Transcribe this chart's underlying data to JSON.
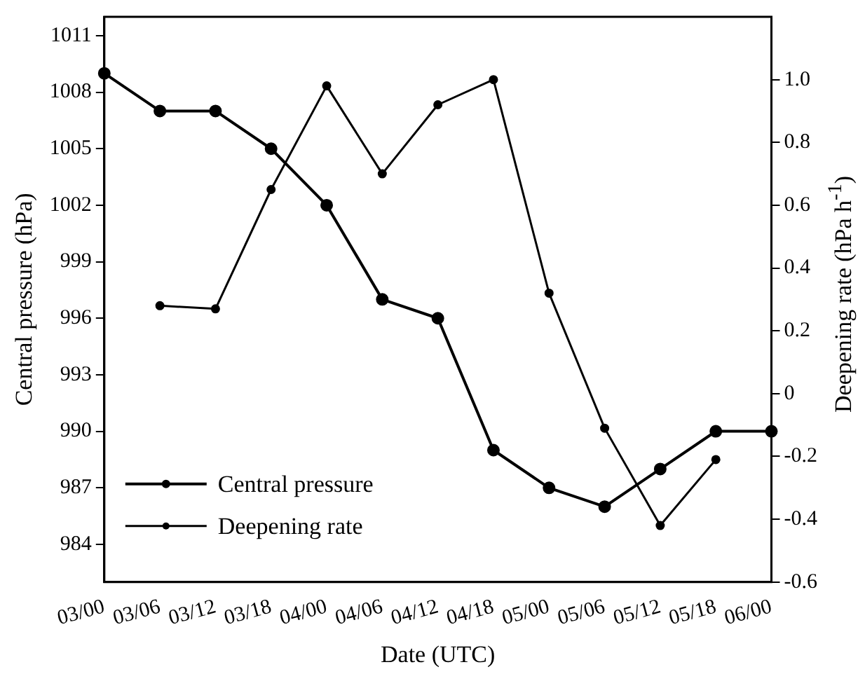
{
  "chart_data": {
    "type": "line",
    "xlabel": "Date (UTC)",
    "ylabel": "Central pressure (hPa)",
    "y2label": "Deepening rate (hPa h$^{-1}$)",
    "categories": [
      "03/00",
      "03/06",
      "03/12",
      "03/18",
      "04/00",
      "04/06",
      "04/12",
      "04/18",
      "05/00",
      "05/06",
      "05/12",
      "05/18",
      "06/00"
    ],
    "series": [
      {
        "name": "Central pressure",
        "color": "#000000",
        "values": [
          1009,
          1007,
          1007,
          1005,
          1002,
          997,
          996,
          989,
          987,
          986,
          988,
          990,
          990
        ]
      },
      {
        "name": "Deepening rate",
        "color": "#000000",
        "axis": "y2",
        "values": [
          null,
          0.28,
          0.27,
          0.65,
          0.98,
          0.7,
          0.92,
          1.0,
          0.32,
          -0.11,
          -0.42,
          -0.21,
          null
        ]
      }
    ],
    "ylim": [
      982,
      1012
    ],
    "yticks": [
      984,
      987,
      990,
      993,
      996,
      999,
      1002,
      1005,
      1008,
      1011
    ],
    "y2lim": [
      -0.6,
      1.2
    ],
    "y2ticks": [
      {
        "value": -0.6,
        "label": "-0.6"
      },
      {
        "value": -0.4,
        "label": "-0.4"
      },
      {
        "value": -0.2,
        "label": "-0.2"
      },
      0,
      {
        "value": 0.2,
        "label": "0.2"
      },
      {
        "value": 0.4,
        "label": "0.4"
      },
      {
        "value": 0.6,
        "label": "0.6"
      },
      {
        "value": 0.8,
        "label": "0.8"
      },
      {
        "value": 1.0,
        "label": "1.0"
      }
    ],
    "grid": false,
    "legend": "bottom left",
    "marker": "circle",
    "line_style": "solid"
  }
}
